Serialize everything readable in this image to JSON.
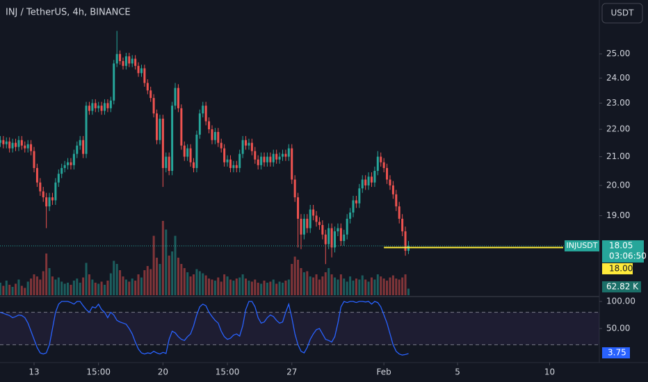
{
  "title": "INJ / TetherUS, 4h, BINANCE",
  "currency_button": "USDT",
  "chart_data": [
    {
      "type": "candlestick",
      "symbol_label": "INJUSDT",
      "countdown": "03:06:50",
      "alert_price": {
        "value": 18,
        "label": "18.00"
      },
      "alert_color": "#ffeb3b",
      "up_color": "#26a69a",
      "down_color": "#ef5350",
      "log_scale": true,
      "grid": false,
      "xlim": [
        -0.1,
        195.2
      ],
      "xticks": [
        {
          "value": 11,
          "label": "13"
        },
        {
          "value": 32,
          "label": "15:00"
        },
        {
          "value": 53,
          "label": "20"
        },
        {
          "value": 74,
          "label": "15:00"
        },
        {
          "value": 95,
          "label": "27"
        },
        {
          "value": 125,
          "label": "Feb"
        },
        {
          "value": 149,
          "label": "5"
        },
        {
          "value": 179,
          "label": "10"
        }
      ],
      "ylim": [
        16.6,
        27.4
      ],
      "yticks": [
        {
          "value": 19,
          "label": "19.00"
        },
        {
          "value": 20,
          "label": "20.00"
        },
        {
          "value": 21,
          "label": "21.00"
        },
        {
          "value": 22,
          "label": "22.00"
        },
        {
          "value": 23,
          "label": "23.00"
        },
        {
          "value": 24,
          "label": "24.00"
        },
        {
          "value": 25,
          "label": "25.00"
        }
      ],
      "open": [
        21.5,
        21.6,
        21.45,
        21.55,
        21.3,
        21.5,
        21.35,
        21.6,
        21.4,
        21.3,
        21.45,
        21.2,
        20.6,
        20.1,
        19.8,
        19.6,
        19.3,
        19.6,
        19.5,
        20.1,
        20.4,
        20.6,
        20.7,
        20.8,
        20.7,
        21.1,
        21.4,
        21.6,
        21.1,
        22.9,
        22.7,
        23.0,
        22.8,
        22.9,
        22.7,
        23.0,
        22.8,
        23.1,
        24.6,
        25.0,
        24.7,
        24.5,
        24.9,
        24.6,
        24.8,
        24.5,
        24.2,
        24.4,
        23.8,
        23.5,
        23.2,
        22.6,
        21.6,
        22.4,
        20.6,
        21.0,
        20.5,
        22.9,
        23.6,
        22.8,
        21.4,
        21.0,
        21.3,
        20.8,
        20.6,
        21.8,
        22.6,
        22.9,
        22.3,
        22.0,
        21.6,
        21.9,
        21.5,
        21.3,
        20.8,
        20.9,
        20.6,
        20.7,
        20.6,
        21.1,
        21.6,
        21.4,
        21.5,
        21.2,
        20.9,
        20.7,
        21.0,
        20.8,
        21.0,
        20.8,
        21.1,
        20.9,
        21.0,
        21.1,
        21.0,
        21.3,
        20.2,
        19.6,
        18.9,
        18.4,
        18.9,
        18.6,
        19.2,
        19.0,
        18.8,
        18.7,
        18.4,
        18.1,
        18.6,
        18.0,
        18.5,
        18.6,
        18.2,
        18.4,
        18.9,
        19.1,
        19.5,
        19.4,
        19.9,
        20.2,
        20.0,
        20.3,
        20.1,
        20.5,
        21.0,
        20.8,
        20.6,
        20.2,
        20.0,
        19.7,
        19.3,
        18.9,
        18.5,
        17.9
      ],
      "high": [
        21.75,
        21.75,
        21.7,
        21.7,
        21.65,
        21.65,
        21.75,
        21.75,
        21.55,
        21.6,
        21.6,
        21.35,
        20.75,
        20.25,
        19.95,
        19.75,
        19.75,
        19.75,
        20.25,
        20.55,
        20.75,
        20.85,
        20.95,
        20.95,
        21.25,
        21.55,
        21.75,
        21.75,
        23.05,
        23.05,
        23.15,
        23.15,
        23.05,
        23.05,
        23.15,
        23.15,
        23.25,
        24.75,
        26.0,
        25.15,
        24.85,
        25.05,
        25.05,
        24.95,
        24.95,
        24.65,
        24.55,
        24.55,
        23.95,
        23.65,
        23.35,
        22.75,
        22.55,
        22.55,
        21.15,
        21.15,
        23.05,
        23.8,
        23.75,
        22.95,
        21.55,
        21.45,
        21.45,
        20.95,
        21.95,
        22.75,
        23.05,
        23.05,
        22.45,
        22.15,
        22.05,
        22.05,
        21.65,
        21.45,
        21.05,
        21.05,
        20.85,
        20.85,
        21.25,
        21.75,
        21.75,
        21.65,
        21.65,
        21.35,
        21.05,
        21.15,
        21.15,
        21.15,
        21.15,
        21.25,
        21.25,
        21.15,
        21.25,
        21.25,
        21.45,
        21.45,
        20.35,
        19.75,
        19.05,
        19.05,
        19.05,
        19.35,
        19.35,
        19.15,
        18.95,
        18.85,
        18.55,
        18.75,
        18.75,
        18.65,
        18.75,
        18.75,
        18.55,
        19.05,
        19.25,
        19.65,
        19.65,
        20.05,
        20.35,
        20.35,
        20.45,
        20.45,
        20.65,
        21.2,
        21.15,
        20.95,
        20.75,
        20.35,
        20.15,
        19.85,
        19.45,
        19.05,
        18.65,
        18.2
      ],
      "low": [
        21.35,
        21.3,
        21.3,
        21.15,
        21.15,
        21.2,
        21.2,
        21.25,
        21.15,
        21.15,
        21.05,
        20.45,
        19.95,
        19.65,
        19.45,
        18.6,
        19.15,
        19.35,
        19.35,
        19.95,
        20.25,
        20.45,
        20.55,
        20.55,
        20.55,
        20.95,
        21.25,
        20.95,
        20.95,
        22.55,
        22.55,
        22.65,
        22.65,
        22.55,
        22.55,
        22.65,
        22.65,
        22.95,
        24.45,
        24.55,
        24.35,
        24.35,
        24.45,
        24.45,
        24.35,
        24.05,
        24.05,
        23.65,
        23.35,
        23.05,
        22.45,
        21.45,
        21.45,
        19.95,
        20.45,
        20.35,
        20.35,
        22.75,
        22.65,
        21.25,
        20.85,
        20.85,
        20.65,
        20.45,
        20.45,
        21.65,
        22.45,
        22.15,
        21.85,
        21.45,
        21.45,
        21.35,
        21.15,
        20.65,
        20.65,
        20.45,
        20.45,
        20.45,
        20.45,
        20.95,
        21.25,
        21.25,
        21.05,
        20.75,
        20.55,
        20.55,
        20.65,
        20.65,
        20.65,
        20.65,
        20.75,
        20.75,
        20.85,
        20.85,
        20.85,
        20.05,
        19.45,
        18.0,
        17.95,
        18.25,
        18.45,
        18.45,
        18.85,
        18.65,
        18.55,
        18.25,
        17.5,
        17.95,
        17.7,
        17.85,
        18.35,
        18.05,
        18.05,
        18.25,
        18.75,
        18.95,
        19.25,
        19.25,
        19.75,
        19.85,
        19.85,
        19.95,
        19.95,
        20.35,
        20.65,
        20.45,
        20.05,
        19.85,
        19.55,
        19.15,
        18.75,
        18.35,
        17.75,
        17.8
      ],
      "close": [
        21.6,
        21.45,
        21.55,
        21.3,
        21.5,
        21.35,
        21.6,
        21.4,
        21.3,
        21.45,
        21.2,
        20.6,
        20.1,
        19.8,
        19.6,
        19.3,
        19.6,
        19.5,
        20.1,
        20.4,
        20.6,
        20.7,
        20.8,
        20.7,
        21.1,
        21.4,
        21.6,
        21.1,
        22.9,
        22.7,
        23.0,
        22.8,
        22.9,
        22.7,
        23.0,
        22.8,
        23.1,
        24.6,
        25.0,
        24.7,
        24.5,
        24.9,
        24.6,
        24.8,
        24.5,
        24.2,
        24.4,
        23.8,
        23.5,
        23.2,
        22.6,
        21.6,
        22.4,
        20.6,
        21.0,
        20.5,
        22.9,
        23.6,
        22.8,
        21.4,
        21.0,
        21.3,
        20.8,
        20.6,
        21.8,
        22.6,
        22.9,
        22.3,
        22.0,
        21.6,
        21.9,
        21.5,
        21.3,
        20.8,
        20.9,
        20.6,
        20.7,
        20.6,
        21.1,
        21.6,
        21.4,
        21.5,
        21.2,
        20.9,
        20.7,
        21.0,
        20.8,
        21.0,
        20.8,
        21.1,
        20.9,
        21.0,
        21.1,
        21.0,
        21.3,
        20.2,
        19.6,
        18.9,
        18.4,
        18.9,
        18.6,
        19.2,
        19.0,
        18.8,
        18.7,
        18.4,
        18.1,
        18.6,
        18.0,
        18.5,
        18.6,
        18.2,
        18.4,
        18.9,
        19.1,
        19.5,
        19.4,
        19.9,
        20.2,
        20.0,
        20.3,
        20.1,
        20.5,
        21.0,
        20.8,
        20.6,
        20.2,
        20.0,
        19.7,
        19.3,
        18.9,
        18.5,
        17.9,
        18.05
      ],
      "volume": {
        "ylim": [
          0,
          2833
        ],
        "last_label": "62.82 K",
        "values": [
          120,
          90,
          140,
          100,
          80,
          110,
          150,
          90,
          70,
          130,
          160,
          200,
          180,
          150,
          230,
          400,
          260,
          180,
          150,
          170,
          130,
          110,
          120,
          100,
          140,
          160,
          120,
          170,
          310,
          200,
          150,
          120,
          110,
          130,
          100,
          140,
          210,
          330,
          300,
          240,
          180,
          150,
          130,
          160,
          140,
          200,
          170,
          240,
          280,
          250,
          570,
          360,
          300,
          713,
          630,
          380,
          420,
          570,
          360,
          300,
          260,
          220,
          180,
          200,
          250,
          230,
          210,
          190,
          160,
          150,
          140,
          170,
          130,
          200,
          180,
          150,
          140,
          160,
          170,
          200,
          160,
          140,
          130,
          150,
          120,
          110,
          140,
          120,
          130,
          150,
          110,
          130,
          120,
          140,
          150,
          300,
          370,
          340,
          260,
          220,
          230,
          180,
          170,
          200,
          150,
          180,
          220,
          260,
          200,
          170,
          150,
          200,
          160,
          130,
          180,
          140,
          160,
          150,
          190,
          150,
          130,
          170,
          150,
          200,
          180,
          160,
          140,
          170,
          190,
          160,
          150,
          170,
          200,
          62.82
        ]
      }
    },
    {
      "type": "line",
      "color": "#2962ff",
      "band_color": "#7e57c2",
      "ylim": [
        0,
        100
      ],
      "yticks": [
        {
          "value": 100,
          "label": "100.00"
        },
        {
          "value": 50,
          "label": "50.00"
        }
      ],
      "bands": [
        80,
        20
      ],
      "values": [
        80,
        78,
        76,
        74,
        70,
        72,
        75,
        74,
        70,
        60,
        45,
        30,
        15,
        5,
        3,
        5,
        20,
        50,
        80,
        95,
        100,
        100,
        100,
        98,
        95,
        100,
        100,
        92,
        85,
        80,
        90,
        88,
        95,
        85,
        80,
        70,
        80,
        75,
        65,
        62,
        60,
        58,
        50,
        40,
        25,
        12,
        5,
        3,
        5,
        4,
        8,
        5,
        3,
        6,
        4,
        30,
        45,
        42,
        35,
        30,
        28,
        35,
        40,
        55,
        75,
        90,
        95,
        92,
        80,
        72,
        65,
        60,
        45,
        35,
        30,
        32,
        38,
        40,
        36,
        55,
        85,
        100,
        100,
        90,
        70,
        60,
        62,
        70,
        75,
        72,
        65,
        60,
        62,
        80,
        95,
        70,
        40,
        20,
        8,
        5,
        15,
        30,
        40,
        48,
        50,
        40,
        30,
        28,
        25,
        35,
        60,
        90,
        100,
        98,
        100,
        100,
        98,
        100,
        100,
        99,
        100,
        95,
        100,
        98,
        90,
        75,
        60,
        40,
        20,
        8,
        3,
        1,
        2,
        3.75
      ]
    }
  ]
}
